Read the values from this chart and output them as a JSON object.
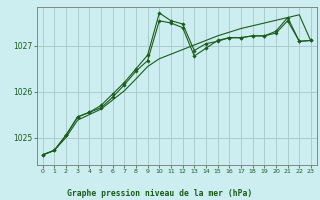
{
  "title": "Graphe pression niveau de la mer (hPa)",
  "bg_color": "#cceef0",
  "grid_color": "#aacccc",
  "line_color": "#1a5c1a",
  "xlim": [
    -0.5,
    23.5
  ],
  "ylim": [
    1024.4,
    1027.85
  ],
  "yticks": [
    1025,
    1026,
    1027
  ],
  "xticks": [
    0,
    1,
    2,
    3,
    4,
    5,
    6,
    7,
    8,
    9,
    10,
    11,
    12,
    13,
    14,
    15,
    16,
    17,
    18,
    19,
    20,
    21,
    22,
    23
  ],
  "series1_x": [
    0,
    1,
    2,
    3,
    4,
    5,
    6,
    7,
    8,
    9,
    10,
    11,
    12,
    13,
    14,
    15,
    16,
    17,
    18,
    19,
    20,
    21,
    22,
    23
  ],
  "series1_y": [
    1024.62,
    1024.72,
    1025.05,
    1025.45,
    1025.55,
    1025.7,
    1025.95,
    1026.2,
    1026.5,
    1026.8,
    1027.72,
    1027.55,
    1027.48,
    1026.9,
    1027.05,
    1027.1,
    1027.18,
    1027.18,
    1027.22,
    1027.22,
    1027.32,
    1027.62,
    1027.1,
    1027.12
  ],
  "series2_x": [
    0,
    1,
    2,
    3,
    4,
    5,
    6,
    7,
    8,
    9,
    10,
    11,
    12,
    13,
    14,
    15,
    16,
    17,
    18,
    19,
    20,
    21,
    22,
    23
  ],
  "series2_y": [
    1024.62,
    1024.72,
    1025.05,
    1025.45,
    1025.55,
    1025.65,
    1025.88,
    1026.15,
    1026.45,
    1026.68,
    1027.55,
    1027.5,
    1027.4,
    1026.78,
    1026.95,
    1027.12,
    1027.18,
    1027.18,
    1027.22,
    1027.22,
    1027.28,
    1027.55,
    1027.1,
    1027.12
  ],
  "series3_x": [
    0,
    1,
    2,
    3,
    4,
    5,
    6,
    7,
    8,
    9,
    10,
    11,
    12,
    13,
    14,
    15,
    16,
    17,
    18,
    19,
    20,
    21,
    22,
    23
  ],
  "series3_y": [
    1024.62,
    1024.72,
    1025.0,
    1025.38,
    1025.5,
    1025.62,
    1025.82,
    1026.02,
    1026.28,
    1026.55,
    1026.72,
    1026.82,
    1026.92,
    1027.02,
    1027.12,
    1027.22,
    1027.3,
    1027.38,
    1027.44,
    1027.5,
    1027.56,
    1027.62,
    1027.68,
    1027.1
  ]
}
